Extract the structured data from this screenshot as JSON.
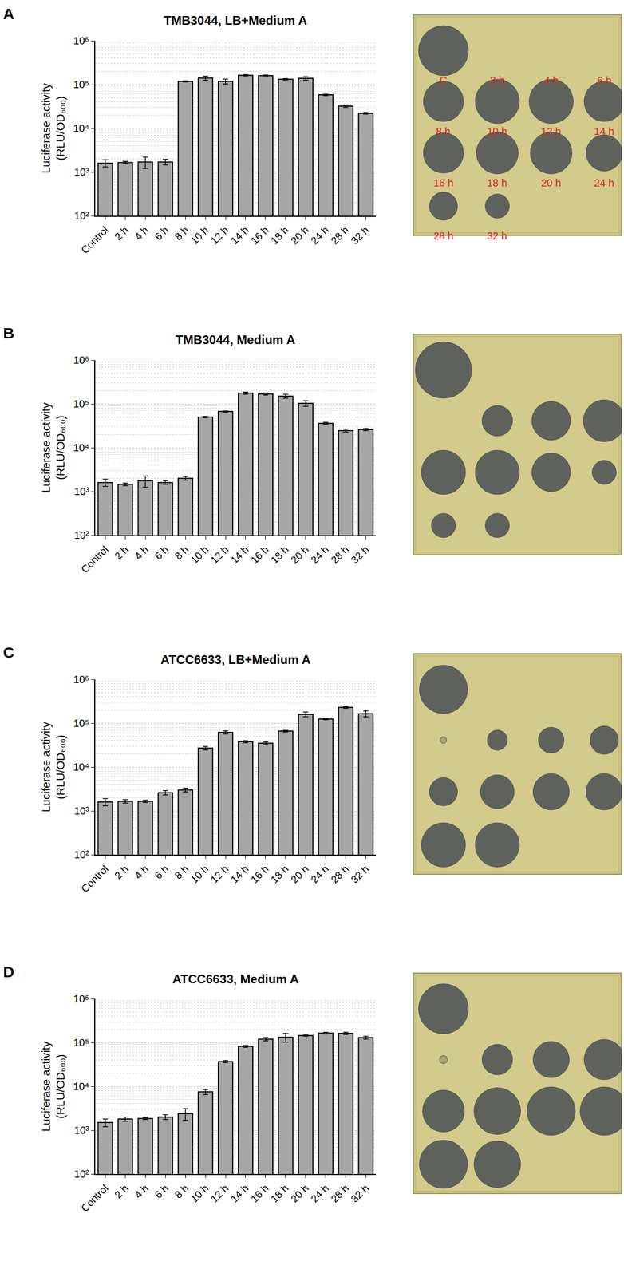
{
  "chart_data": [
    {
      "type": "bar",
      "panel": "A",
      "title": "TMB3044, LB+Medium A",
      "y_label": [
        "Luciferase activity",
        "(RLU/OD₆₀₀)"
      ],
      "categories": [
        "Control",
        "2 h",
        "4 h",
        "6 h",
        "8 h",
        "10 h",
        "12 h",
        "14 h",
        "16 h",
        "18 h",
        "20 h",
        "24 h",
        "28 h",
        "32 h"
      ],
      "values": [
        1600,
        1650,
        1700,
        1700,
        118000,
        140000,
        118000,
        162000,
        160000,
        132000,
        138000,
        58000,
        32000,
        22000
      ],
      "errors": [
        300,
        100,
        500,
        250,
        4000,
        15000,
        15000,
        6000,
        5000,
        5000,
        12000,
        2000,
        2000,
        1000
      ],
      "color": "#a6a6a6",
      "log": "y",
      "grid": true,
      "ylim": [
        100,
        1000000
      ],
      "yticks": [
        {
          "value": 100,
          "label": "10²"
        },
        {
          "value": 1000,
          "label": "10³"
        },
        {
          "value": 10000,
          "label": "10⁴"
        },
        {
          "value": 100000,
          "label": "10⁵"
        },
        {
          "value": 1000000,
          "label": "10⁶"
        }
      ],
      "plate": {
        "zone_diameters": [
          62,
          0,
          0,
          0,
          50,
          55,
          55,
          50,
          50,
          52,
          52,
          45,
          35,
          30
        ],
        "labels": [
          "C",
          "2 h",
          "4 h",
          "6 h",
          "8 h",
          "10 h",
          "12 h",
          "14 h",
          "16 h",
          "18 h",
          "20 h",
          "24 h",
          "28 h",
          "32 h"
        ]
      }
    },
    {
      "type": "bar",
      "panel": "B",
      "title": "TMB3044, Medium A",
      "y_label": [
        "Luciferase activity",
        "(RLU/OD₆₀₀)"
      ],
      "categories": [
        "Control",
        "2 h",
        "4 h",
        "6 h",
        "8 h",
        "10 h",
        "12 h",
        "14 h",
        "16 h",
        "18 h",
        "20 h",
        "24 h",
        "28 h",
        "32 h"
      ],
      "values": [
        1600,
        1450,
        1750,
        1600,
        2000,
        50000,
        67000,
        175000,
        168000,
        150000,
        103000,
        36000,
        24500,
        26000
      ],
      "errors": [
        300,
        100,
        500,
        150,
        200,
        2000,
        2000,
        10000,
        10000,
        15000,
        15000,
        2000,
        2000,
        1500
      ],
      "color": "#a6a6a6",
      "log": "y",
      "grid": true,
      "ylim": [
        100,
        1000000
      ],
      "yticks": [
        {
          "value": 100,
          "label": "10²"
        },
        {
          "value": 1000,
          "label": "10³"
        },
        {
          "value": 10000,
          "label": "10⁴"
        },
        {
          "value": 100000,
          "label": "10⁵"
        },
        {
          "value": 1000000,
          "label": "10⁶"
        }
      ],
      "plate": {
        "zone_diameters": [
          70,
          0,
          0,
          0,
          0,
          38,
          48,
          52,
          55,
          55,
          48,
          30,
          30,
          30
        ]
      }
    },
    {
      "type": "bar",
      "panel": "C",
      "title": "ATCC6633, LB+Medium A",
      "y_label": [
        "Luciferase activity",
        "(RLU/OD₆₀₀)"
      ],
      "categories": [
        "Control",
        "2 h",
        "4 h",
        "6 h",
        "8 h",
        "10 h",
        "12 h",
        "14 h",
        "16 h",
        "18 h",
        "20 h",
        "24 h",
        "28 h",
        "32 h"
      ],
      "values": [
        1600,
        1650,
        1650,
        2600,
        3000,
        27000,
        62000,
        38000,
        35000,
        66000,
        160000,
        125000,
        230000,
        165000
      ],
      "errors": [
        300,
        150,
        100,
        300,
        300,
        2500,
        5000,
        2000,
        2500,
        3000,
        20000,
        5000,
        10000,
        25000
      ],
      "color": "#a6a6a6",
      "log": "y",
      "grid": true,
      "ylim": [
        100,
        1000000
      ],
      "yticks": [
        {
          "value": 100,
          "label": "10²"
        },
        {
          "value": 1000,
          "label": "10³"
        },
        {
          "value": 10000,
          "label": "10⁴"
        },
        {
          "value": 100000,
          "label": "10⁵"
        },
        {
          "value": 1000000,
          "label": "10⁶"
        }
      ],
      "plate": {
        "zone_diameters": [
          60,
          0,
          0,
          0,
          8,
          25,
          32,
          35,
          35,
          42,
          45,
          45,
          55,
          55
        ]
      }
    },
    {
      "type": "bar",
      "panel": "D",
      "title": "ATCC6633, Medium A",
      "y_label": [
        "Luciferase activity",
        "(RLU/OD₆₀₀)"
      ],
      "categories": [
        "Control",
        "2 h",
        "4 h",
        "6 h",
        "8 h",
        "10 h",
        "12 h",
        "14 h",
        "16 h",
        "18 h",
        "20 h",
        "24 h",
        "28 h",
        "32 h"
      ],
      "values": [
        1500,
        1800,
        1850,
        2000,
        2400,
        7500,
        37000,
        82000,
        120000,
        133000,
        145000,
        165000,
        163000,
        130000
      ],
      "errors": [
        300,
        200,
        100,
        250,
        700,
        1000,
        2000,
        4000,
        10000,
        30000,
        5000,
        8000,
        10000,
        10000
      ],
      "color": "#a6a6a6",
      "log": "y",
      "grid": true,
      "ylim": [
        100,
        1000000
      ],
      "yticks": [
        {
          "value": 100,
          "label": "10²"
        },
        {
          "value": 1000,
          "label": "10³"
        },
        {
          "value": 10000,
          "label": "10⁴"
        },
        {
          "value": 100000,
          "label": "10⁵"
        },
        {
          "value": 1000000,
          "label": "10⁶"
        }
      ],
      "plate": {
        "zone_diameters": [
          62,
          0,
          0,
          0,
          10,
          38,
          45,
          50,
          52,
          58,
          60,
          60,
          60,
          58
        ]
      }
    }
  ]
}
